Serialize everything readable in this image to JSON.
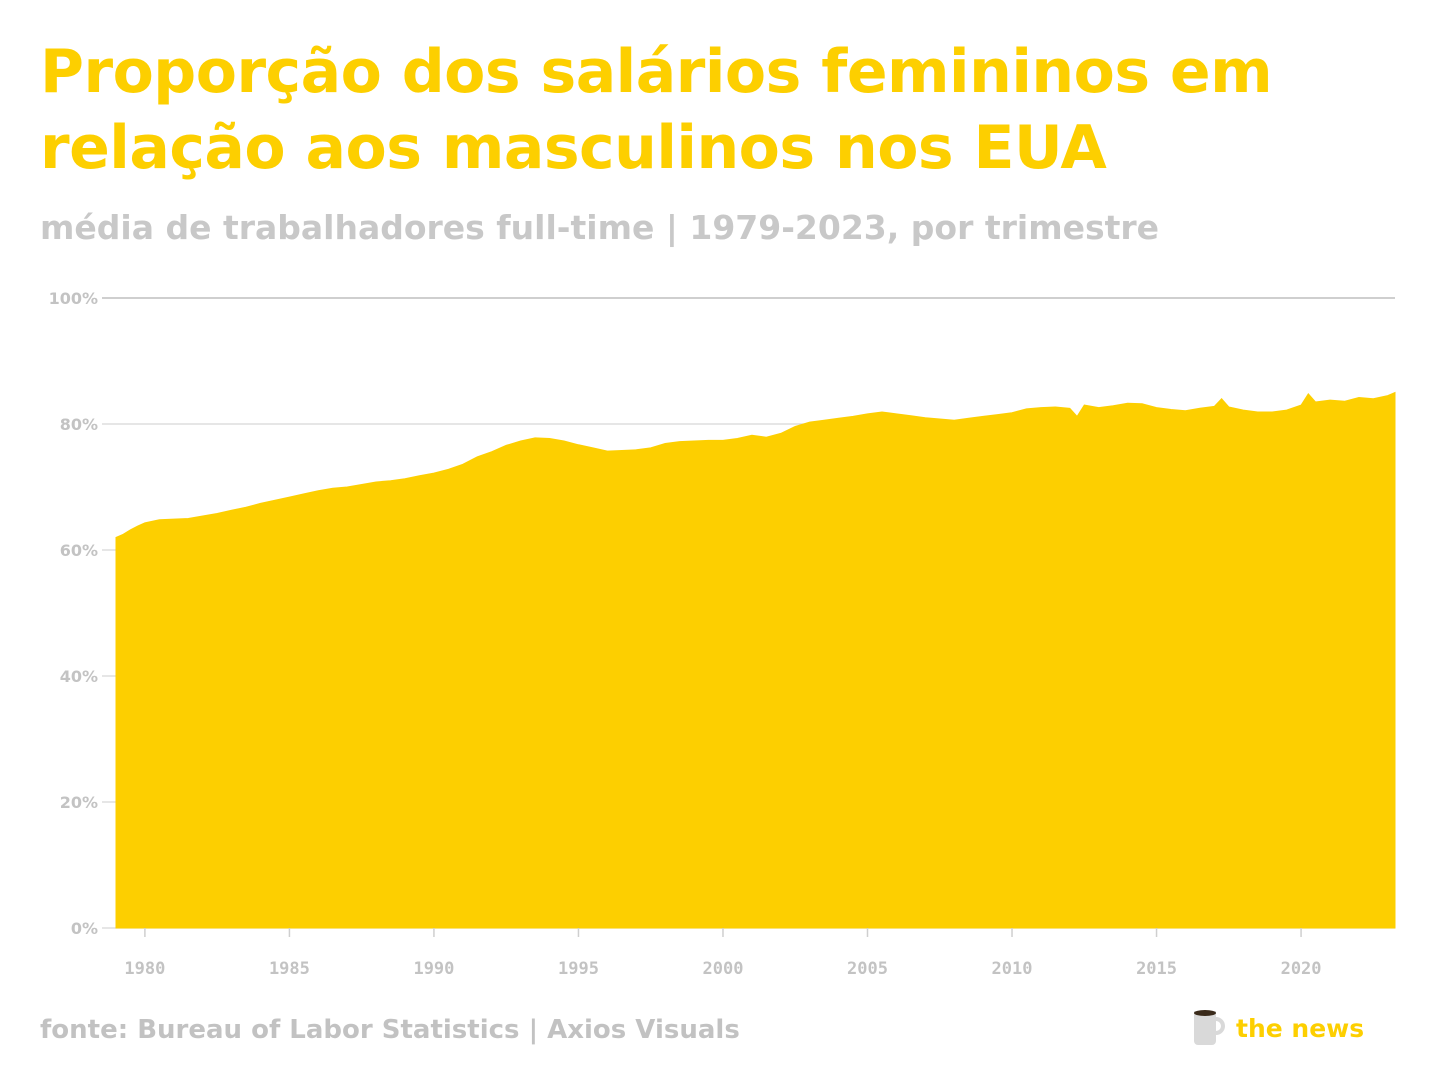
{
  "title": "Proporção dos salários femininos em relação aos masculinos nos EUA",
  "subtitle": "média de trabalhadores full-time | 1979-2023, por trimestre",
  "footer": {
    "source": "fonte: Bureau of Labor Statistics | Axios Visuals",
    "brand": "the news",
    "brand_icon": "coffee-mug-icon"
  },
  "colors": {
    "accent": "#fdcf00",
    "text_muted": "#c2c2c2",
    "gridline": "#d0d0d0"
  },
  "chart_data": {
    "type": "area",
    "title": "Proporção dos salários femininos em relação aos masculinos nos EUA",
    "subtitle": "média de trabalhadores full-time | 1979-2023, por trimestre",
    "xlabel": "",
    "ylabel": "",
    "xlim": [
      1979,
      2023.25
    ],
    "ylim": [
      0,
      100
    ],
    "x_ticks": [
      1980,
      1985,
      1990,
      1995,
      2000,
      2005,
      2010,
      2015,
      2020
    ],
    "x_tick_labels": [
      "1980",
      "1985",
      "1990",
      "1995",
      "2000",
      "2005",
      "2010",
      "2015",
      "2020"
    ],
    "y_ticks": [
      0,
      20,
      40,
      60,
      80,
      100
    ],
    "y_tick_labels": [
      "0%",
      "20%",
      "40%",
      "60%",
      "80%",
      "100%"
    ],
    "grid": true,
    "legend": "none",
    "series": [
      {
        "color": "#fdcf00",
        "x": [
          1979.0,
          1979.25,
          1979.5,
          1979.75,
          1980.0,
          1980.5,
          1981.0,
          1981.5,
          1982.0,
          1982.5,
          1983.0,
          1983.5,
          1984.0,
          1984.5,
          1985.0,
          1985.5,
          1986.0,
          1986.5,
          1987.0,
          1987.5,
          1988.0,
          1988.5,
          1989.0,
          1989.5,
          1990.0,
          1990.5,
          1991.0,
          1991.5,
          1992.0,
          1992.5,
          1993.0,
          1993.5,
          1994.0,
          1994.5,
          1995.0,
          1995.5,
          1996.0,
          1996.5,
          1997.0,
          1997.5,
          1998.0,
          1998.5,
          1999.0,
          1999.5,
          2000.0,
          2000.5,
          2001.0,
          2001.5,
          2002.0,
          2002.5,
          2003.0,
          2003.5,
          2004.0,
          2004.5,
          2005.0,
          2005.5,
          2006.0,
          2006.5,
          2007.0,
          2007.5,
          2008.0,
          2008.5,
          2009.0,
          2009.5,
          2010.0,
          2010.5,
          2011.0,
          2011.5,
          2012.0,
          2012.25,
          2012.5,
          2013.0,
          2013.5,
          2014.0,
          2014.5,
          2015.0,
          2015.5,
          2016.0,
          2016.5,
          2017.0,
          2017.25,
          2017.5,
          2018.0,
          2018.5,
          2019.0,
          2019.5,
          2020.0,
          2020.25,
          2020.5,
          2021.0,
          2021.5,
          2022.0,
          2022.5,
          2023.0,
          2023.25
        ],
        "values": [
          62.0,
          62.5,
          63.2,
          63.8,
          64.3,
          64.8,
          64.9,
          65.0,
          65.4,
          65.8,
          66.3,
          66.8,
          67.4,
          67.9,
          68.4,
          68.9,
          69.4,
          69.8,
          70.0,
          70.4,
          70.8,
          71.0,
          71.3,
          71.8,
          72.2,
          72.8,
          73.6,
          74.8,
          75.6,
          76.6,
          77.3,
          77.8,
          77.7,
          77.3,
          76.7,
          76.2,
          75.7,
          75.8,
          75.9,
          76.2,
          76.9,
          77.2,
          77.3,
          77.4,
          77.4,
          77.7,
          78.2,
          77.9,
          78.5,
          79.6,
          80.3,
          80.6,
          80.9,
          81.2,
          81.6,
          81.9,
          81.6,
          81.3,
          81.0,
          80.8,
          80.6,
          80.9,
          81.2,
          81.5,
          81.8,
          82.4,
          82.6,
          82.7,
          82.5,
          81.2,
          83.0,
          82.6,
          82.9,
          83.3,
          83.2,
          82.6,
          82.3,
          82.1,
          82.5,
          82.8,
          84.0,
          82.7,
          82.2,
          81.9,
          81.9,
          82.2,
          83.0,
          84.8,
          83.5,
          83.8,
          83.6,
          84.2,
          84.0,
          84.5,
          85.0
        ]
      }
    ]
  }
}
